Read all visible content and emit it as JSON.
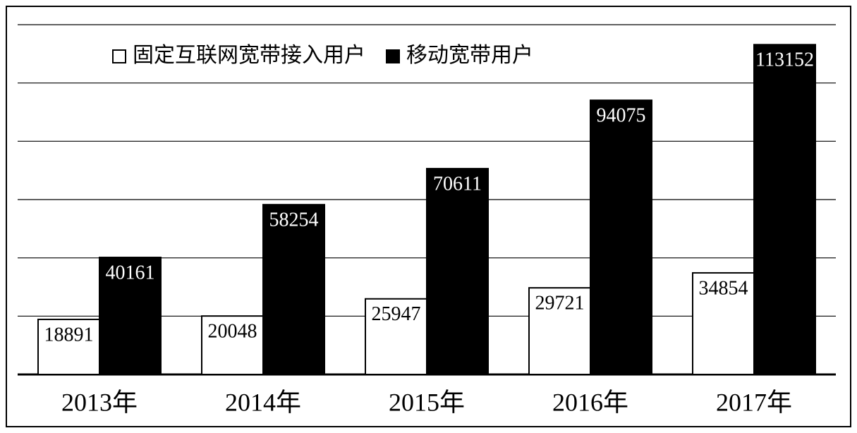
{
  "chart_data": {
    "type": "bar",
    "categories": [
      "2013年",
      "2014年",
      "2015年",
      "2016年",
      "2017年"
    ],
    "series": [
      {
        "name": "固定互联网宽带接入用户",
        "color": "#ffffff",
        "values": [
          18891,
          20048,
          25947,
          29721,
          34854
        ]
      },
      {
        "name": "移动宽带用户",
        "color": "#000000",
        "values": [
          40161,
          58254,
          70611,
          94075,
          113152
        ]
      }
    ],
    "ylim": [
      0,
      120000
    ],
    "yticks": [
      0,
      20000,
      40000,
      60000,
      80000,
      100000,
      120000
    ],
    "grid": true
  }
}
